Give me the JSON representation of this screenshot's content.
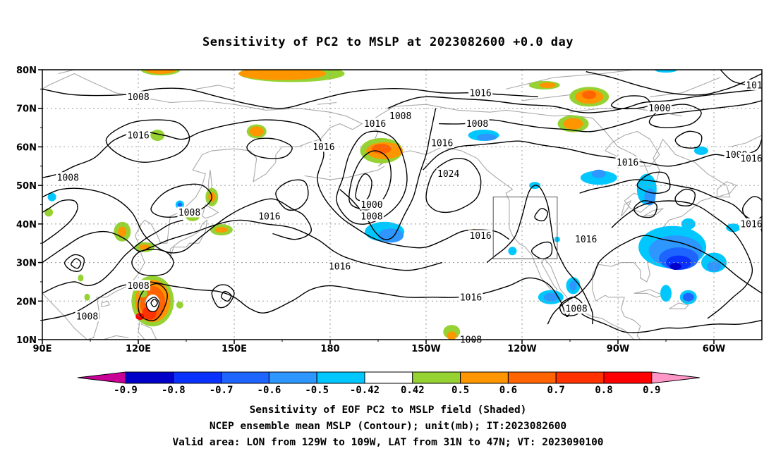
{
  "title": "Sensitivity of PC2 to MSLP at 2023082600 +0.0 day",
  "map": {
    "lat_labels": [
      "80N",
      "70N",
      "60N",
      "50N",
      "40N",
      "30N",
      "20N",
      "10N"
    ],
    "lon_labels": [
      "90E",
      "120E",
      "150E",
      "180",
      "150W",
      "120W",
      "90W",
      "60W"
    ],
    "lat_range": [
      10,
      80
    ],
    "lon_range": [
      90,
      315
    ],
    "lat_lines": [
      80,
      70,
      60,
      50,
      40,
      30,
      20,
      10
    ],
    "lon_lines": [
      90,
      120,
      150,
      180,
      210,
      240,
      270,
      300
    ],
    "valid_area_box": {
      "lon": [
        231,
        251
      ],
      "lat": [
        31,
        47
      ]
    },
    "contour_labels": [
      {
        "text": "1008",
        "lon": 120,
        "lat": 73
      },
      {
        "text": "1016",
        "lon": 227,
        "lat": 74
      },
      {
        "text": "1016",
        "lon": 120,
        "lat": 63
      },
      {
        "text": "1016",
        "lon": 178,
        "lat": 60
      },
      {
        "text": "1016",
        "lon": 194,
        "lat": 66
      },
      {
        "text": "1008",
        "lon": 202,
        "lat": 68
      },
      {
        "text": "1008",
        "lon": 226,
        "lat": 66
      },
      {
        "text": "1016",
        "lon": 215,
        "lat": 61
      },
      {
        "text": "1000",
        "lon": 283,
        "lat": 70
      },
      {
        "text": "1016",
        "lon": 273,
        "lat": 56
      },
      {
        "text": "1008",
        "lon": 307,
        "lat": 58
      },
      {
        "text": "1016",
        "lon": 316,
        "lat": 57
      },
      {
        "text": "101",
        "lon": 317,
        "lat": 76
      },
      {
        "text": "1008",
        "lon": 98,
        "lat": 52
      },
      {
        "text": "1024",
        "lon": 217,
        "lat": 53
      },
      {
        "text": "1000",
        "lon": 193,
        "lat": 45
      },
      {
        "text": "1008",
        "lon": 193,
        "lat": 42
      },
      {
        "text": "1008",
        "lon": 136,
        "lat": 43
      },
      {
        "text": "1016",
        "lon": 161,
        "lat": 42
      },
      {
        "text": "1016",
        "lon": 183,
        "lat": 29
      },
      {
        "text": "1016",
        "lon": 227,
        "lat": 37
      },
      {
        "text": "1016",
        "lon": 260,
        "lat": 36
      },
      {
        "text": "1016",
        "lon": 313,
        "lat": 40
      },
      {
        "text": "1008",
        "lon": 120,
        "lat": 24
      },
      {
        "text": "1008",
        "lon": 104,
        "lat": 16
      },
      {
        "text": "1016",
        "lon": 224,
        "lat": 21
      },
      {
        "text": "1008",
        "lon": 257,
        "lat": 18
      },
      {
        "text": "1008",
        "lon": 224,
        "lat": 10
      }
    ]
  },
  "colorbar": {
    "labels": [
      "-0.9",
      "-0.8",
      "-0.7",
      "-0.6",
      "-0.5",
      "-0.42",
      "0.42",
      "0.5",
      "0.6",
      "0.7",
      "0.8",
      "0.9"
    ],
    "colors": [
      "#0000c8",
      "#0a32ff",
      "#1e64ff",
      "#2d96ff",
      "#00c8ff",
      "#ffffff",
      "#96d232",
      "#ff9600",
      "#ff6400",
      "#ff3200",
      "#ff0000"
    ],
    "under_color": "#c80096",
    "over_color": "#ff96c8"
  },
  "footer": {
    "line1": "Sensitivity of EOF PC2 to MSLP field (Shaded)",
    "line2": "NCEP ensemble mean MSLP (Contour); unit(mb); IT:2023082600",
    "line3": "Valid area: LON from 129W to 109W, LAT from 31N to 47N; VT: 2023090100"
  }
}
